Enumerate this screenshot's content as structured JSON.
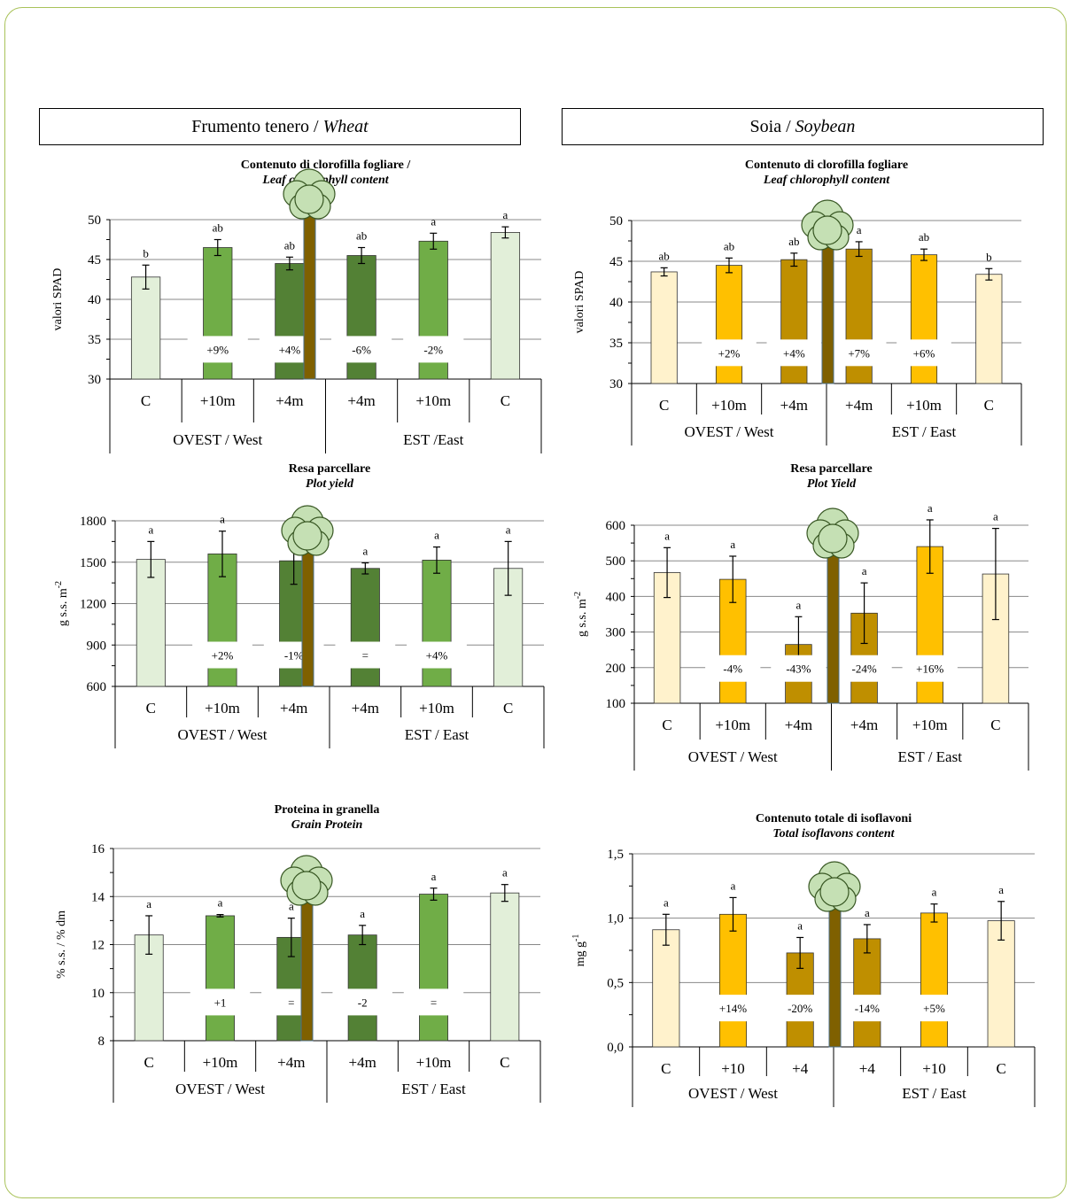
{
  "crops": [
    {
      "name": "Frumento tenero / ",
      "name_en": "Wheat"
    },
    {
      "name": "Soia / ",
      "name_en": "Soybean"
    }
  ],
  "colors": {
    "frame": "#a9c25a",
    "wheat_control": "#e2efd9",
    "wheat_10m": "#70ad47",
    "wheat_4m": "#538135",
    "soy_control": "#fff2cc",
    "soy_10m": "#ffc000",
    "soy_4m": "#bf8f00",
    "trunk": "#7f6000",
    "canopy": "#c5e0b4"
  },
  "chart_data": [
    {
      "type": "bar",
      "title": "Contenuto di clorofilla fogliare /",
      "subtitle": "Leaf chlorophyll content",
      "ylabel": "valori SPAD",
      "ylim": [
        30,
        50
      ],
      "yticks": [
        "30",
        "35",
        "40",
        "45",
        "50"
      ],
      "categories": [
        "C",
        "+10m",
        "+4m",
        "+4m",
        "+10m",
        "C"
      ],
      "groups": [
        "OVEST / West",
        "EST /East"
      ],
      "values": [
        42.8,
        46.5,
        44.5,
        45.5,
        47.3,
        48.4
      ],
      "errors": [
        1.5,
        1.0,
        0.8,
        1.0,
        1.0,
        0.7
      ],
      "letters": [
        "b",
        "ab",
        "ab",
        "ab",
        "a",
        "a"
      ],
      "changes": [
        "",
        "+9%",
        "+4%",
        "-6%",
        "-2%",
        ""
      ],
      "grid": true
    },
    {
      "type": "bar",
      "title": "Resa parcellare",
      "subtitle": "Plot yield",
      "ylabel": "g s.s. m",
      "ylabel_sup": "-2",
      "ylim": [
        600,
        1800
      ],
      "yticks": [
        "600",
        "900",
        "1200",
        "1500",
        "1800"
      ],
      "categories": [
        "C",
        "+10m",
        "+4m",
        "+4m",
        "+10m",
        "C"
      ],
      "groups": [
        "OVEST / West",
        "EST / East"
      ],
      "values": [
        1520,
        1560,
        1510,
        1455,
        1515,
        1455
      ],
      "errors": [
        130,
        165,
        170,
        40,
        95,
        195
      ],
      "letters": [
        "a",
        "a",
        "a",
        "a",
        "a",
        "a"
      ],
      "changes": [
        "",
        "+2%",
        "-1%",
        "=",
        "+4%",
        ""
      ],
      "grid": true
    },
    {
      "type": "bar",
      "title": "Proteina in granella",
      "subtitle": "Grain Protein",
      "ylabel": "% s.s. / % dm",
      "ylim": [
        8,
        16
      ],
      "yticks": [
        "8",
        "10",
        "12",
        "14",
        "16"
      ],
      "categories": [
        "C",
        "+10m",
        "+4m",
        "+4m",
        "+10m",
        "C"
      ],
      "groups": [
        "OVEST / West",
        "EST / East"
      ],
      "values": [
        12.4,
        13.2,
        12.3,
        12.4,
        14.1,
        14.15
      ],
      "errors": [
        0.8,
        0.05,
        0.8,
        0.4,
        0.25,
        0.35
      ],
      "letters": [
        "a",
        "a",
        "a",
        "a",
        "a",
        "a"
      ],
      "changes": [
        "",
        "+1",
        "=",
        "-2",
        "=",
        ""
      ],
      "grid": true
    },
    {
      "type": "bar",
      "title": "Contenuto di clorofilla fogliare",
      "subtitle": "Leaf chlorophyll content",
      "ylabel": "valori SPAD",
      "ylim": [
        30,
        50
      ],
      "yticks": [
        "30",
        "35",
        "40",
        "45",
        "50"
      ],
      "categories": [
        "C",
        "+10m",
        "+4m",
        "+4m",
        "+10m",
        "C"
      ],
      "groups": [
        "OVEST / West",
        "EST / East"
      ],
      "values": [
        43.7,
        44.5,
        45.2,
        46.5,
        45.8,
        43.4
      ],
      "errors": [
        0.5,
        0.9,
        0.8,
        0.9,
        0.7,
        0.7
      ],
      "letters": [
        "ab",
        "ab",
        "ab",
        "a",
        "ab",
        "b"
      ],
      "changes": [
        "",
        "+2%",
        "+4%",
        "+7%",
        "+6%",
        ""
      ],
      "grid": true
    },
    {
      "type": "bar",
      "title": "Resa parcellare",
      "subtitle": "Plot Yield",
      "ylabel": "g s.s. m",
      "ylabel_sup": "-2",
      "ylim": [
        100,
        600
      ],
      "yticks": [
        "100",
        "200",
        "300",
        "400",
        "500",
        "600"
      ],
      "categories": [
        "C",
        "+10m",
        "+4m",
        "+4m",
        "+10m",
        "C"
      ],
      "groups": [
        "OVEST / West",
        "EST / East"
      ],
      "values": [
        467,
        448,
        265,
        353,
        540,
        463
      ],
      "errors": [
        70,
        65,
        78,
        85,
        75,
        128
      ],
      "letters": [
        "a",
        "a",
        "a",
        "a",
        "a",
        "a"
      ],
      "changes": [
        "",
        "-4%",
        "-43%",
        "-24%",
        "+16%",
        ""
      ],
      "grid": true
    },
    {
      "type": "bar",
      "title": "Contenuto totale di isoflavoni",
      "subtitle": "Total isoflavons content",
      "ylabel": "mg g",
      "ylabel_sup": "-1",
      "ylim": [
        0,
        1.5
      ],
      "yticks": [
        "0,0",
        "0,5",
        "1,0",
        "1,5"
      ],
      "categories": [
        "C",
        "+10",
        "+4",
        "+4",
        "+10",
        "C"
      ],
      "groups": [
        "OVEST / West",
        "EST / East"
      ],
      "values": [
        0.91,
        1.03,
        0.73,
        0.84,
        1.04,
        0.98
      ],
      "errors": [
        0.12,
        0.13,
        0.12,
        0.11,
        0.07,
        0.15
      ],
      "letters": [
        "a",
        "a",
        "a",
        "a",
        "a",
        "a"
      ],
      "changes": [
        "",
        "+14%",
        "-20%",
        "-14%",
        "+5%",
        ""
      ],
      "grid": true
    }
  ]
}
